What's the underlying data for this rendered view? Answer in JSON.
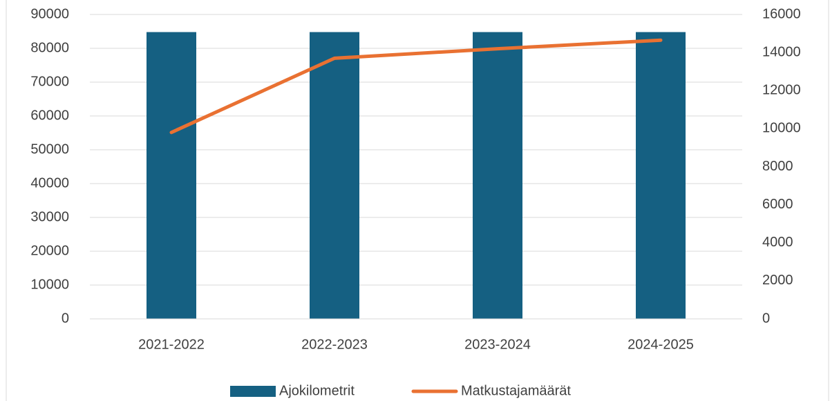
{
  "chart_data": {
    "type": "bar",
    "categories": [
      "2021-2022",
      "2022-2023",
      "2023-2024",
      "2024-2025"
    ],
    "series": [
      {
        "name": "Ajokilometrit",
        "color": "#156082",
        "type": "bar",
        "values": [
          84800,
          84800,
          84800,
          84800
        ]
      },
      {
        "name": "Matkustajamäärät",
        "color": "#e97132",
        "type": "line",
        "axis": "y2",
        "values": [
          9800,
          13700,
          14200,
          14650
        ]
      }
    ],
    "ylim": [
      0,
      90000
    ],
    "yticks": [
      0,
      10000,
      20000,
      30000,
      40000,
      50000,
      60000,
      70000,
      80000,
      90000
    ],
    "y2lim": [
      0,
      16000
    ],
    "y2ticks": [
      0,
      2000,
      4000,
      6000,
      8000,
      10000,
      12000,
      14000,
      16000
    ],
    "grid": true,
    "legend": "bottom"
  }
}
